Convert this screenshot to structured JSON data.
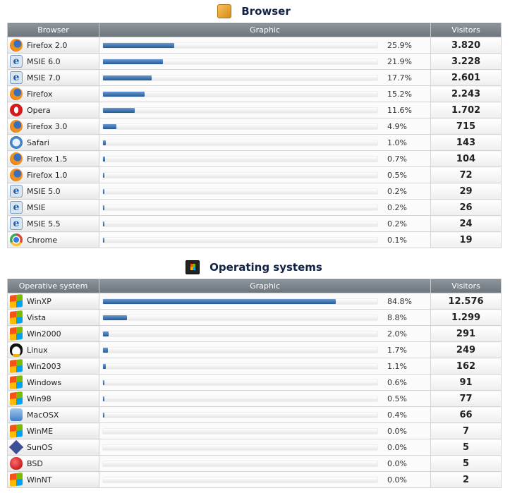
{
  "browser": {
    "title": "Browser",
    "headers": {
      "name": "Browser",
      "graphic": "Graphic",
      "visitors": "Visitors"
    },
    "rows": [
      {
        "name": "Firefox 2.0",
        "icon": "firefox-icon",
        "pct_label": "25.9%",
        "pct": 25.9,
        "visitors": "3.820"
      },
      {
        "name": "MSIE 6.0",
        "icon": "msie-icon",
        "pct_label": "21.9%",
        "pct": 21.9,
        "visitors": "3.228"
      },
      {
        "name": "MSIE 7.0",
        "icon": "msie-icon",
        "pct_label": "17.7%",
        "pct": 17.7,
        "visitors": "2.601"
      },
      {
        "name": "Firefox",
        "icon": "firefox-icon",
        "pct_label": "15.2%",
        "pct": 15.2,
        "visitors": "2.243"
      },
      {
        "name": "Opera",
        "icon": "opera-icon",
        "pct_label": "11.6%",
        "pct": 11.6,
        "visitors": "1.702"
      },
      {
        "name": "Firefox 3.0",
        "icon": "firefox-icon",
        "pct_label": "4.9%",
        "pct": 4.9,
        "visitors": "715"
      },
      {
        "name": "Safari",
        "icon": "safari-icon",
        "pct_label": "1.0%",
        "pct": 1.0,
        "visitors": "143"
      },
      {
        "name": "Firefox 1.5",
        "icon": "firefox-icon",
        "pct_label": "0.7%",
        "pct": 0.7,
        "visitors": "104"
      },
      {
        "name": "Firefox 1.0",
        "icon": "firefox-icon",
        "pct_label": "0.5%",
        "pct": 0.5,
        "visitors": "72"
      },
      {
        "name": "MSIE 5.0",
        "icon": "msie-icon",
        "pct_label": "0.2%",
        "pct": 0.2,
        "visitors": "29"
      },
      {
        "name": "MSIE",
        "icon": "msie-icon",
        "pct_label": "0.2%",
        "pct": 0.2,
        "visitors": "26"
      },
      {
        "name": "MSIE 5.5",
        "icon": "msie-icon",
        "pct_label": "0.2%",
        "pct": 0.2,
        "visitors": "24"
      },
      {
        "name": "Chrome",
        "icon": "chrome-icon",
        "pct_label": "0.1%",
        "pct": 0.1,
        "visitors": "19"
      }
    ]
  },
  "os": {
    "title": "Operating systems",
    "headers": {
      "name": "Operative system",
      "graphic": "Graphic",
      "visitors": "Visitors"
    },
    "rows": [
      {
        "name": "WinXP",
        "icon": "windows-icon",
        "pct_label": "84.8%",
        "pct": 84.8,
        "visitors": "12.576"
      },
      {
        "name": "Vista",
        "icon": "windows-icon",
        "pct_label": "8.8%",
        "pct": 8.8,
        "visitors": "1.299"
      },
      {
        "name": "Win2000",
        "icon": "windows-icon",
        "pct_label": "2.0%",
        "pct": 2.0,
        "visitors": "291"
      },
      {
        "name": "Linux",
        "icon": "linux-icon",
        "pct_label": "1.7%",
        "pct": 1.7,
        "visitors": "249"
      },
      {
        "name": "Win2003",
        "icon": "windows-icon",
        "pct_label": "1.1%",
        "pct": 1.1,
        "visitors": "162"
      },
      {
        "name": "Windows",
        "icon": "windows-icon",
        "pct_label": "0.6%",
        "pct": 0.6,
        "visitors": "91"
      },
      {
        "name": "Win98",
        "icon": "windows-icon",
        "pct_label": "0.5%",
        "pct": 0.5,
        "visitors": "77"
      },
      {
        "name": "MacOSX",
        "icon": "macos-icon",
        "pct_label": "0.4%",
        "pct": 0.4,
        "visitors": "66"
      },
      {
        "name": "WinME",
        "icon": "windows-icon",
        "pct_label": "0.0%",
        "pct": 0.0,
        "visitors": "7"
      },
      {
        "name": "SunOS",
        "icon": "sunos-icon",
        "pct_label": "0.0%",
        "pct": 0.0,
        "visitors": "5"
      },
      {
        "name": "BSD",
        "icon": "bsd-icon",
        "pct_label": "0.0%",
        "pct": 0.0,
        "visitors": "5"
      },
      {
        "name": "WinNT",
        "icon": "windows-icon",
        "pct_label": "0.0%",
        "pct": 0.0,
        "visitors": "2"
      }
    ]
  }
}
